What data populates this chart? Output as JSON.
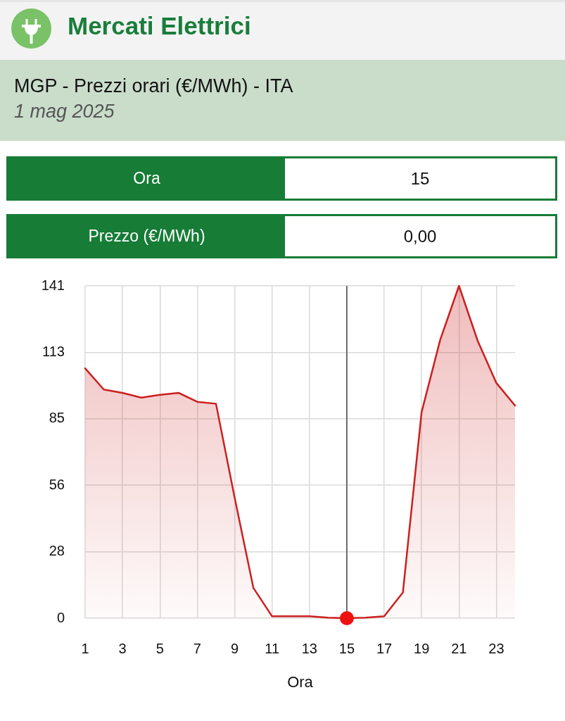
{
  "chart_data": {
    "type": "area",
    "title": "MGP - Prezzi orari (€/MWh) - ITA",
    "subtitle": "1 mag 2025",
    "xlabel": "Ora",
    "annotations": [
      "Mercati Elettrici",
      "Ora",
      "15",
      "Prezzo (€/MWh)",
      "0,00"
    ],
    "x": [
      1,
      2,
      3,
      4,
      5,
      6,
      7,
      8,
      9,
      10,
      11,
      12,
      13,
      14,
      15,
      16,
      17,
      18,
      19,
      20,
      21,
      22,
      23,
      24
    ],
    "series": [
      {
        "color": "#cc1f1f",
        "values": [
          106.0,
          97.0,
          95.6,
          93.6,
          94.8,
          95.6,
          91.8,
          91.0,
          51.1,
          12.9,
          0.8,
          0.8,
          0.8,
          0.2,
          0,
          0.2,
          0.8,
          10.9,
          87.4,
          118.2,
          141,
          117.7,
          99.8,
          90.2
        ]
      },
      {
        "type": "scatter",
        "x": [
          15
        ],
        "values": [
          0
        ],
        "color": "#ee1111",
        "marker": "circle"
      }
    ],
    "ref_lines": [
      {
        "axis": "x",
        "value": 15,
        "color": "#444444"
      }
    ],
    "xlim": [
      1,
      24
    ],
    "xticks": [
      1,
      3,
      5,
      7,
      9,
      11,
      13,
      15,
      17,
      19,
      21,
      23
    ],
    "ylim": [
      0,
      141
    ],
    "yticks": [
      0,
      {
        "value": 28.2,
        "label": "28"
      },
      {
        "value": 56.4,
        "label": "56"
      },
      {
        "value": 84.6,
        "label": "85"
      },
      {
        "value": 112.8,
        "label": "113"
      },
      141
    ],
    "grid": true
  }
}
